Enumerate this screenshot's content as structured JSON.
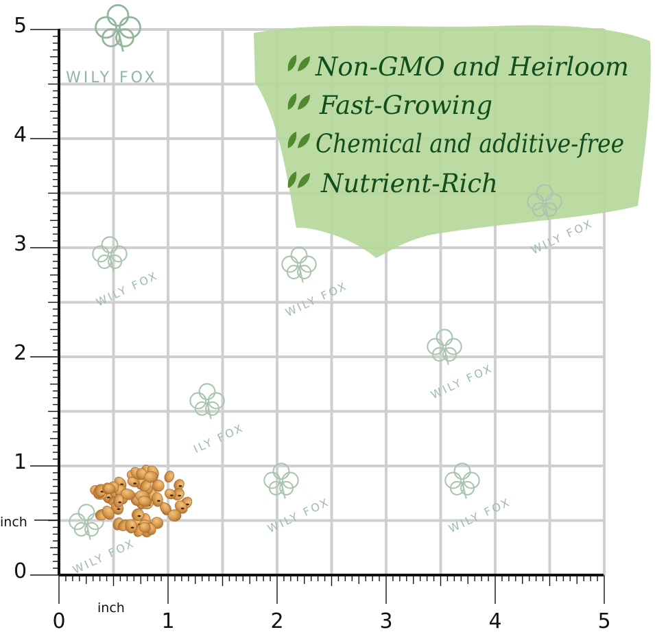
{
  "brand": {
    "name": "WILY FOX"
  },
  "features": [
    "Non-GMO and Heirloom",
    "Fast-Growing",
    "Chemical and additive-free",
    "Nutrient-Rich"
  ],
  "ruler": {
    "x_unit": "inch",
    "y_unit": "inch",
    "x_ticks": [
      "0",
      "1",
      "2",
      "3",
      "4",
      "5"
    ],
    "y_ticks": [
      "0",
      "1",
      "2",
      "3",
      "4",
      "5"
    ]
  },
  "watermarks": [
    "WILY FOX",
    "WILY FOX",
    "WILY FOX",
    "WILY FOX",
    "ILY FOX",
    "WILY FOX",
    "WILY FOX",
    "WILY FOX"
  ],
  "colors": {
    "grid": "#cfcfcf",
    "axis": "#111111",
    "badge_green": "#b6d89a",
    "feature_text": "#124d1f",
    "watermark": "#9fbca6",
    "seed": "#d79a4f"
  },
  "icons": {
    "bullet": "leaf-check-icon",
    "logo": "clover-icon"
  },
  "subject": {
    "seed_count_label": ""
  }
}
